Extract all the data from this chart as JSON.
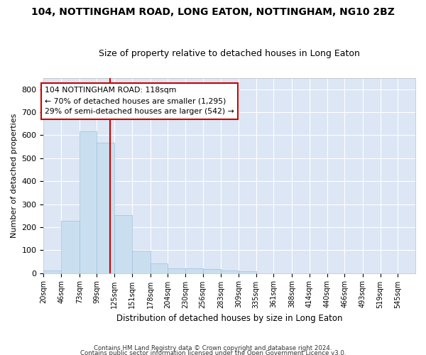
{
  "title": "104, NOTTINGHAM ROAD, LONG EATON, NOTTINGHAM, NG10 2BZ",
  "subtitle": "Size of property relative to detached houses in Long Eaton",
  "xlabel": "Distribution of detached houses by size in Long Eaton",
  "ylabel": "Number of detached properties",
  "bar_color": "#c9dff0",
  "bar_edge_color": "#a0c0dc",
  "background_color": "#dce6f5",
  "grid_color": "#ffffff",
  "bin_edges": [
    20,
    46,
    73,
    99,
    125,
    151,
    178,
    204,
    230,
    256,
    283,
    309,
    335,
    361,
    388,
    414,
    440,
    466,
    493,
    519,
    545,
    571
  ],
  "bin_labels": [
    "20sqm",
    "46sqm",
    "73sqm",
    "99sqm",
    "125sqm",
    "151sqm",
    "178sqm",
    "204sqm",
    "230sqm",
    "256sqm",
    "283sqm",
    "309sqm",
    "335sqm",
    "361sqm",
    "388sqm",
    "414sqm",
    "440sqm",
    "466sqm",
    "493sqm",
    "519sqm",
    "545sqm"
  ],
  "bar_heights": [
    10,
    227,
    617,
    567,
    253,
    97,
    43,
    20,
    20,
    18,
    10,
    7,
    0,
    0,
    0,
    0,
    0,
    0,
    0,
    0,
    0
  ],
  "ylim": [
    0,
    850
  ],
  "yticks": [
    0,
    100,
    200,
    300,
    400,
    500,
    600,
    700,
    800
  ],
  "property_line_x": 118,
  "annotation_line1": "104 NOTTINGHAM ROAD: 118sqm",
  "annotation_line2": "← 70% of detached houses are smaller (1,295)",
  "annotation_line3": "29% of semi-detached houses are larger (542) →",
  "annotation_box_color": "#ffffff",
  "annotation_box_edge": "#cc0000",
  "vline_color": "#cc0000",
  "fig_bg": "#ffffff",
  "footer1": "Contains HM Land Registry data © Crown copyright and database right 2024.",
  "footer2": "Contains public sector information licensed under the Open Government Licence v3.0.",
  "title_fontsize": 10,
  "subtitle_fontsize": 9
}
